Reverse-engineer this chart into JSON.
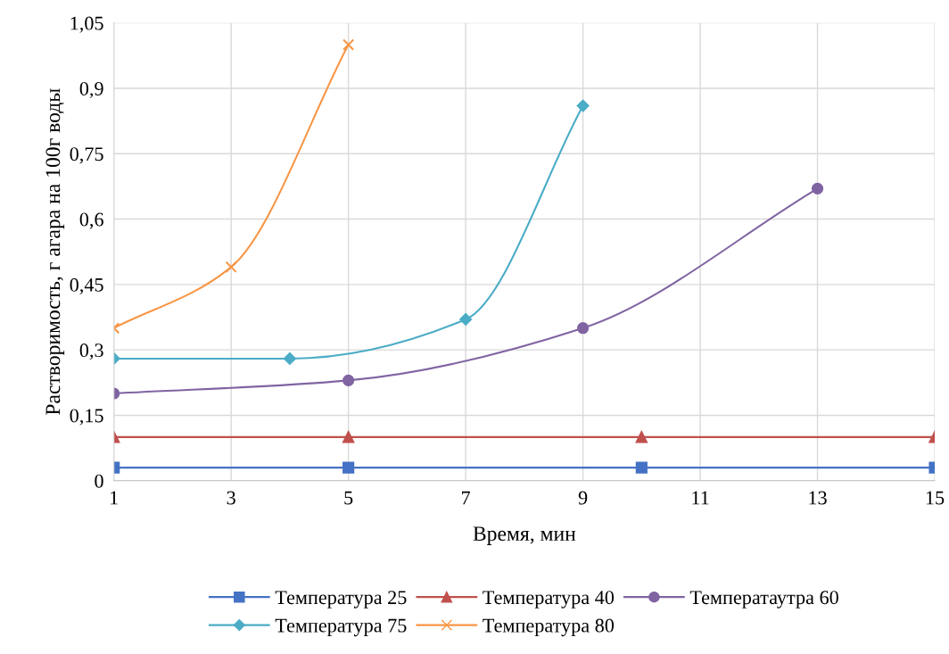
{
  "chart_data": {
    "type": "line",
    "xlabel": "Время, мин",
    "ylabel": "Растворимость, г агара на 100г воды",
    "xlim": [
      1,
      15
    ],
    "xticks": [
      1,
      3,
      5,
      7,
      9,
      11,
      13,
      15
    ],
    "ylim": [
      0,
      1.05
    ],
    "yticks": [
      {
        "value": 0,
        "label": "0"
      },
      {
        "value": 0.15,
        "label": "0,15"
      },
      {
        "value": 0.3,
        "label": "0,3"
      },
      {
        "value": 0.45,
        "label": "0,45"
      },
      {
        "value": 0.6,
        "label": "0,6"
      },
      {
        "value": 0.75,
        "label": "0,75"
      },
      {
        "value": 0.9,
        "label": "0,9"
      },
      {
        "value": 1.05,
        "label": "1,05"
      }
    ],
    "grid": true,
    "legend": "bottom",
    "series": [
      {
        "name": "Температура 25",
        "color": "#4472c4",
        "marker": "square",
        "x": [
          1,
          5,
          10,
          15
        ],
        "values": [
          0.03,
          0.03,
          0.03,
          0.03
        ]
      },
      {
        "name": "Температура 40",
        "color": "#c0504d",
        "marker": "triangle",
        "x": [
          1,
          5,
          10,
          15
        ],
        "values": [
          0.1,
          0.1,
          0.1,
          0.1
        ]
      },
      {
        "name": "Температаутра 60",
        "color": "#8064a2",
        "marker": "circle",
        "x": [
          1,
          5,
          9,
          13
        ],
        "values": [
          0.2,
          0.23,
          0.35,
          0.67
        ]
      },
      {
        "name": "Температура 75",
        "color": "#4bacc6",
        "marker": "diamond",
        "x": [
          1,
          4,
          7,
          9
        ],
        "values": [
          0.28,
          0.28,
          0.37,
          0.86
        ]
      },
      {
        "name": "Температура 80",
        "color": "#f79646",
        "marker": "cross",
        "x": [
          1,
          3,
          5
        ],
        "values": [
          0.35,
          0.49,
          1.0
        ]
      }
    ]
  }
}
